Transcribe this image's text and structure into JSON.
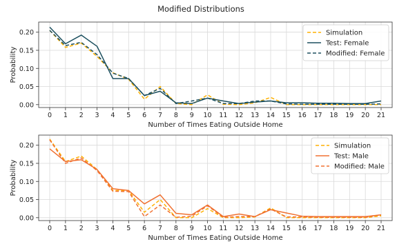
{
  "figure": {
    "title": "Modified Distributions"
  },
  "chart_data": [
    {
      "type": "line",
      "xlabel": "Number of Times Eating Outside Home",
      "ylabel": "Probability",
      "x": [
        0,
        1,
        2,
        3,
        4,
        5,
        6,
        7,
        8,
        9,
        10,
        11,
        12,
        13,
        14,
        15,
        16,
        17,
        18,
        19,
        20,
        21
      ],
      "xticks": [
        "0",
        "1",
        "2",
        "3",
        "4",
        "5",
        "6",
        "7",
        "8",
        "9",
        "10",
        "11",
        "12",
        "13",
        "14",
        "15",
        "16",
        "17",
        "18",
        "19",
        "20",
        "21"
      ],
      "xlim": [
        -0.7,
        21.7
      ],
      "ylim": [
        -0.008,
        0.228
      ],
      "yticks": [
        0.0,
        0.05,
        0.1,
        0.15,
        0.2
      ],
      "ytick_labels": [
        "0.00",
        "0.05",
        "0.10",
        "0.15",
        "0.20"
      ],
      "grid": true,
      "legend_position": "top-right",
      "series": [
        {
          "name": "Simulation",
          "color": "#FFB000",
          "style": "dashed",
          "values": [
            0.205,
            0.158,
            0.17,
            0.133,
            0.088,
            0.07,
            0.015,
            0.05,
            0.003,
            0.0,
            0.027,
            0.001,
            0.0,
            0.005,
            0.02,
            0.0,
            0.0,
            0.0,
            0.0,
            0.0,
            0.0,
            0.0
          ]
        },
        {
          "name": "Test: Female",
          "color": "#1B4F5E",
          "style": "solid",
          "values": [
            0.214,
            0.168,
            0.192,
            0.161,
            0.072,
            0.072,
            0.025,
            0.037,
            0.005,
            0.003,
            0.018,
            0.01,
            0.003,
            0.007,
            0.01,
            0.005,
            0.005,
            0.004,
            0.004,
            0.003,
            0.003,
            0.01
          ]
        },
        {
          "name": "Modified: Female",
          "color": "#1B4F5E",
          "style": "dashed",
          "values": [
            0.205,
            0.163,
            0.172,
            0.138,
            0.087,
            0.072,
            0.025,
            0.045,
            0.003,
            0.01,
            0.018,
            0.003,
            0.003,
            0.01,
            0.01,
            0.002,
            0.001,
            0.001,
            0.001,
            0.001,
            0.001,
            0.002
          ]
        }
      ]
    },
    {
      "type": "line",
      "xlabel": "Number of Times Eating Outside Home",
      "ylabel": "Probability",
      "x": [
        0,
        1,
        2,
        3,
        4,
        5,
        6,
        7,
        8,
        9,
        10,
        11,
        12,
        13,
        14,
        15,
        16,
        17,
        18,
        19,
        20,
        21
      ],
      "xticks": [
        "0",
        "1",
        "2",
        "3",
        "4",
        "5",
        "6",
        "7",
        "8",
        "9",
        "10",
        "11",
        "12",
        "13",
        "14",
        "15",
        "16",
        "17",
        "18",
        "19",
        "20",
        "21"
      ],
      "xlim": [
        -0.7,
        21.7
      ],
      "ylim": [
        -0.008,
        0.228
      ],
      "yticks": [
        0.0,
        0.05,
        0.1,
        0.15,
        0.2
      ],
      "ytick_labels": [
        "0.00",
        "0.05",
        "0.10",
        "0.15",
        "0.20"
      ],
      "grid": true,
      "legend_position": "top-right",
      "series": [
        {
          "name": "Simulation",
          "color": "#FFB000",
          "style": "dashed",
          "values": [
            0.217,
            0.155,
            0.17,
            0.133,
            0.075,
            0.075,
            0.015,
            0.05,
            0.0,
            0.0,
            0.025,
            0.0,
            0.0,
            0.002,
            0.027,
            0.0,
            0.0,
            0.0,
            0.0,
            0.0,
            0.0,
            0.005
          ]
        },
        {
          "name": "Test: Male",
          "color": "#F07030",
          "style": "solid",
          "values": [
            0.19,
            0.155,
            0.16,
            0.133,
            0.08,
            0.075,
            0.038,
            0.063,
            0.012,
            0.008,
            0.035,
            0.003,
            0.01,
            0.003,
            0.022,
            0.013,
            0.004,
            0.003,
            0.003,
            0.003,
            0.003,
            0.008
          ]
        },
        {
          "name": "Modified: Male",
          "color": "#F07030",
          "style": "dashed",
          "values": [
            0.215,
            0.15,
            0.165,
            0.13,
            0.073,
            0.072,
            0.003,
            0.035,
            0.001,
            0.004,
            0.033,
            0.001,
            0.003,
            0.003,
            0.024,
            0.002,
            0.002,
            0.001,
            0.001,
            0.001,
            0.001,
            0.008
          ]
        }
      ]
    }
  ]
}
